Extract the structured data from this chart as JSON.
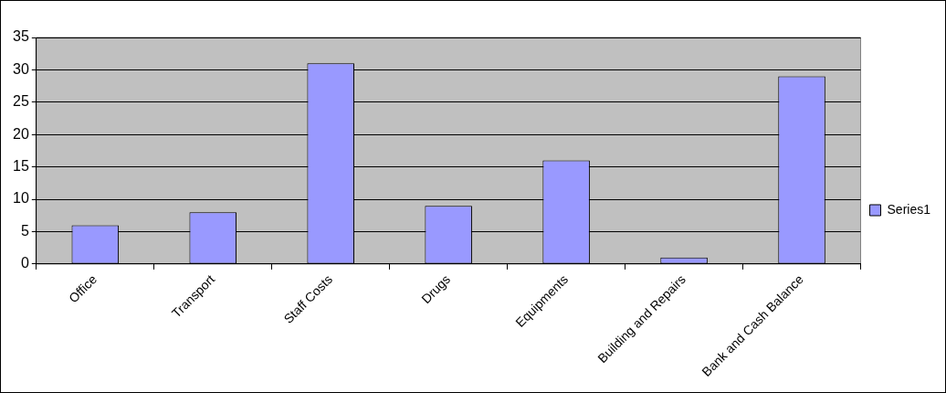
{
  "chart_data": {
    "type": "bar",
    "categories": [
      "Office",
      "Transport",
      "Staff Costs",
      "Drugs",
      "Equipments",
      "Building and Repairs",
      "Bank and Cash Balance"
    ],
    "series": [
      {
        "name": "Series1",
        "color": "#9999ff",
        "values": [
          6,
          8,
          31,
          9,
          16,
          1,
          29
        ]
      }
    ],
    "ylim": [
      0,
      35
    ],
    "yticks": [
      0,
      5,
      10,
      15,
      20,
      25,
      30,
      35
    ],
    "grid": "y",
    "legend": "right"
  }
}
